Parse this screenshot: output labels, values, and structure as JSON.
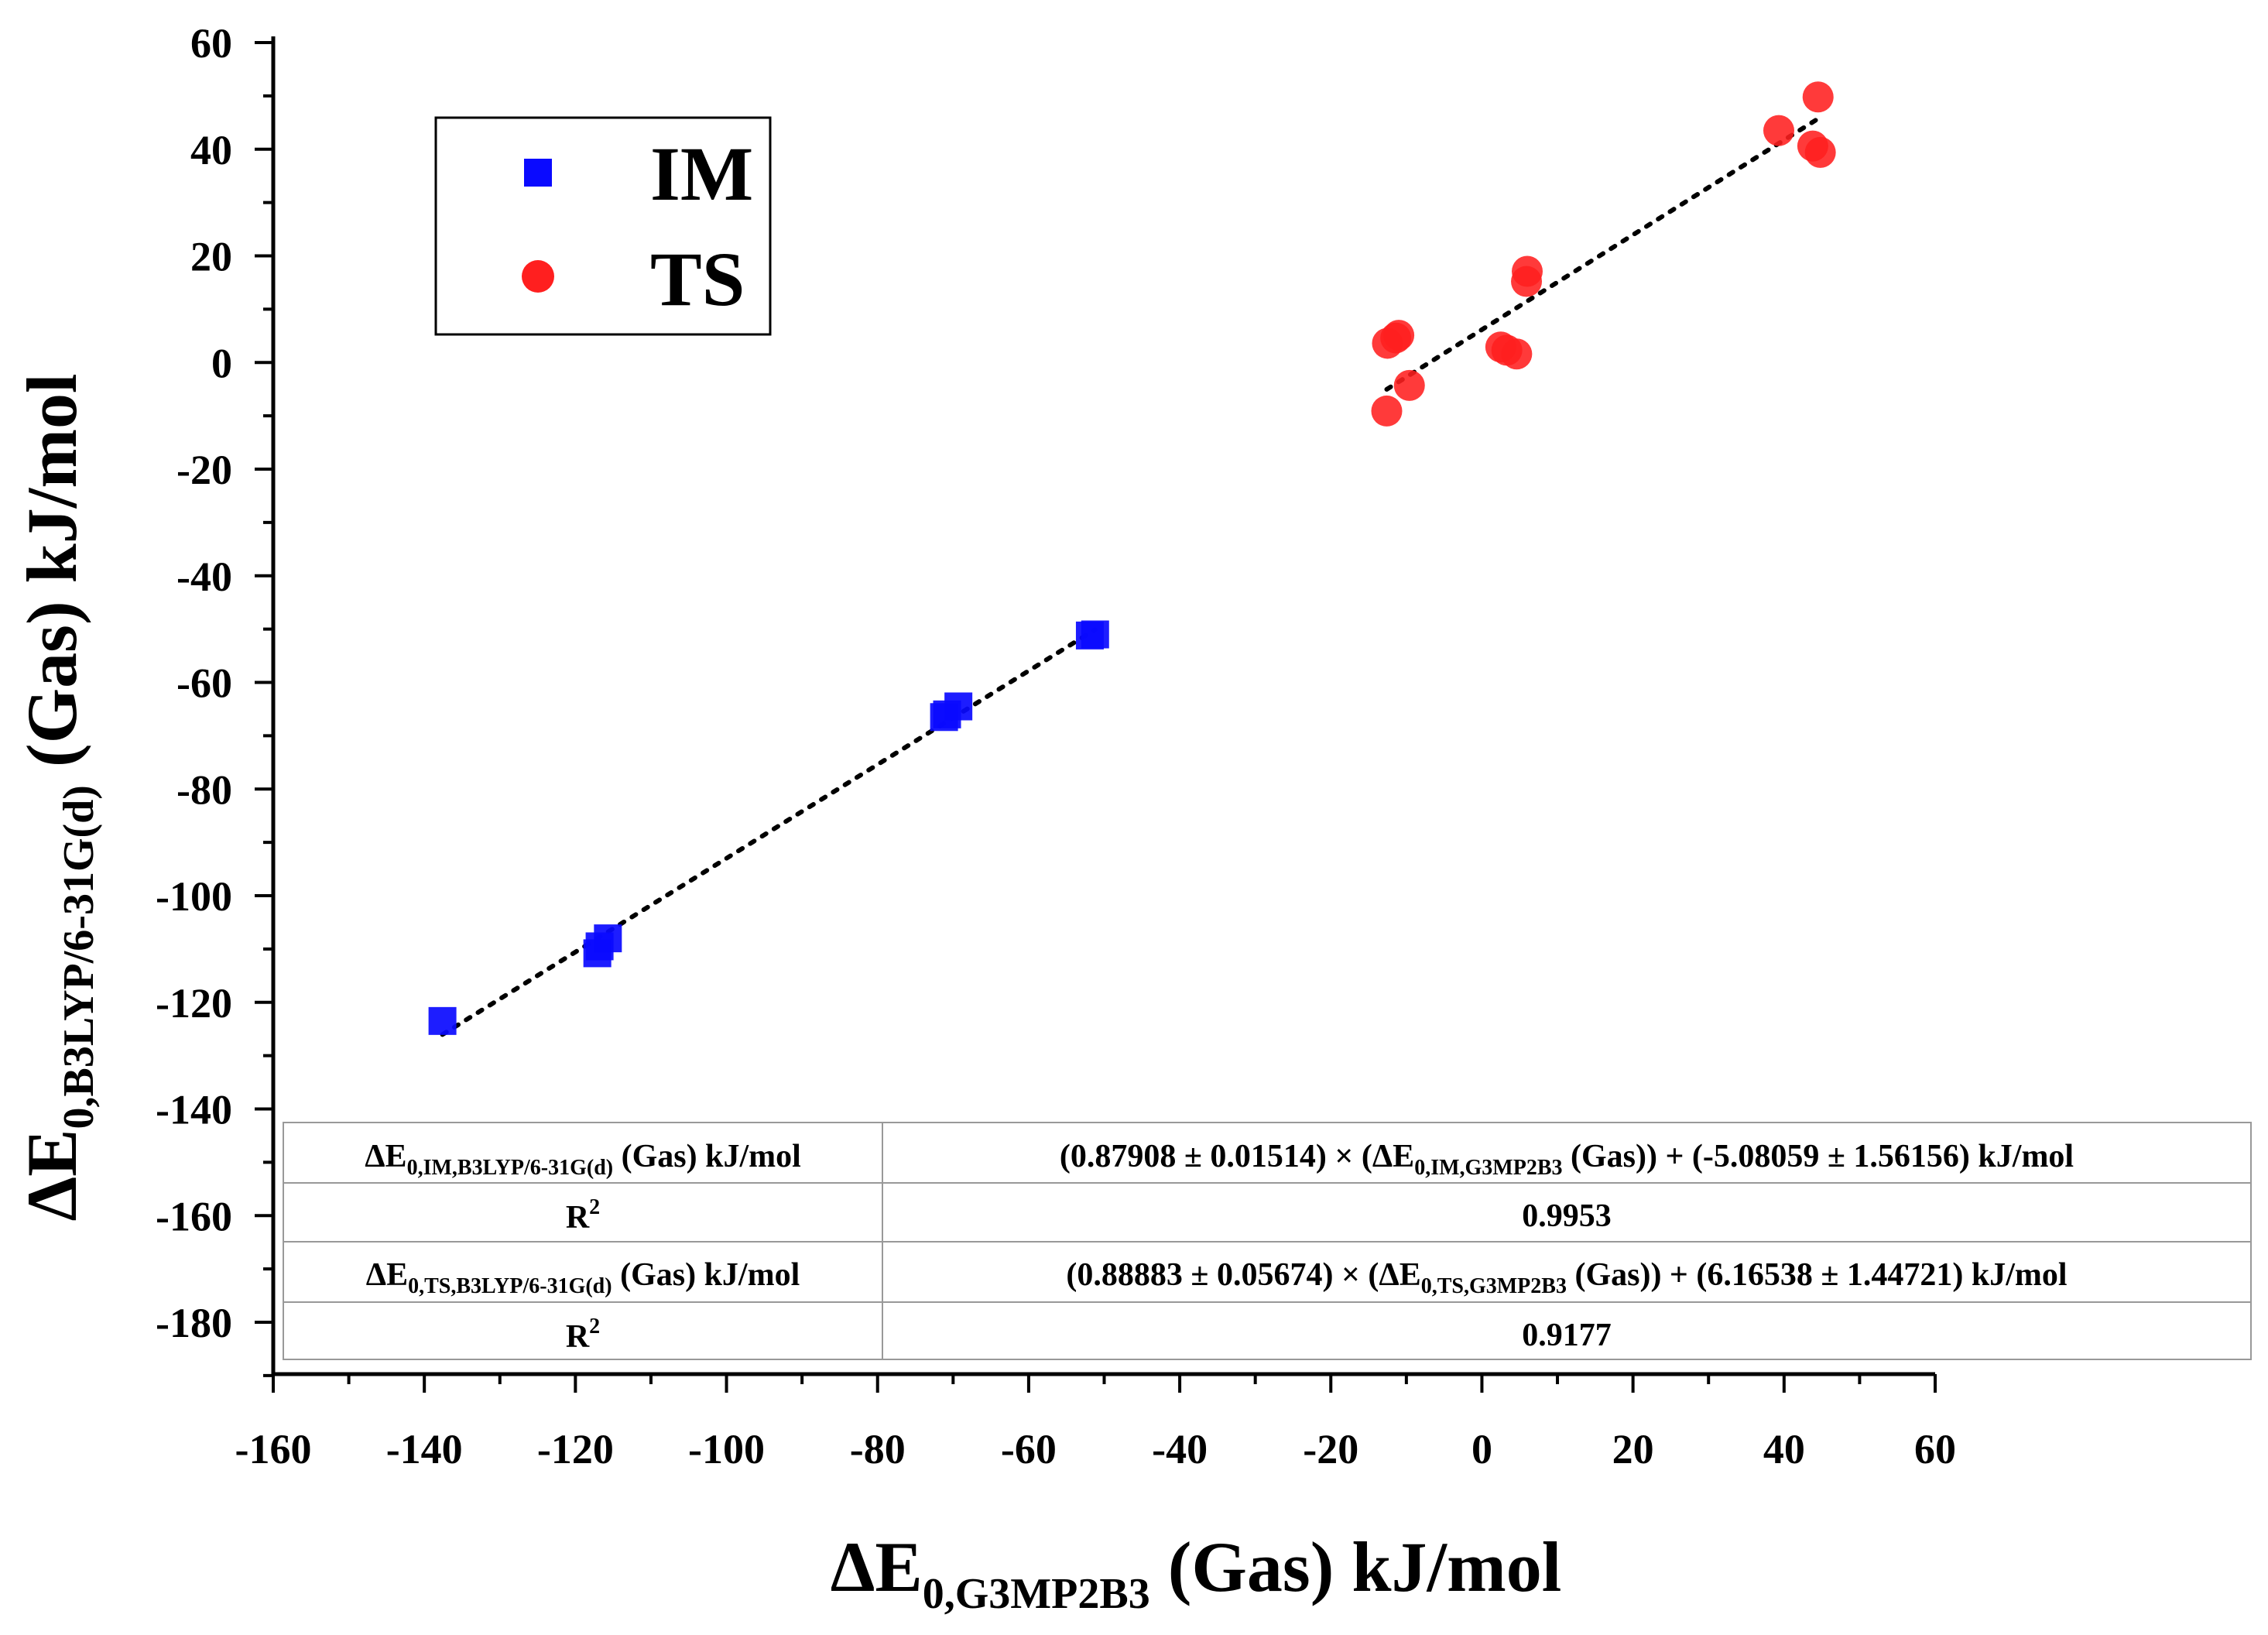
{
  "chart_data": {
    "type": "scatter",
    "x_axis": {
      "label_main": "ΔE",
      "label_sub": "0,G3MP2B3",
      "label_rest": " (Gas) kJ/mol",
      "range": [
        -160,
        60
      ],
      "ticks": [
        -160,
        -140,
        -120,
        -100,
        -80,
        -60,
        -40,
        -20,
        0,
        20,
        40,
        60
      ],
      "tick_labels": [
        "-160",
        "-140",
        "-120",
        "-100",
        "-80",
        "-60",
        "-40",
        "-20",
        "0",
        "20",
        "40",
        "60"
      ]
    },
    "y_axis": {
      "label_main": "ΔE",
      "label_sub": "0,B3LYP/6-31G(d)",
      "label_rest": " (Gas) kJ/mol",
      "range": [
        -190,
        60
      ],
      "ticks": [
        60,
        40,
        20,
        0,
        -20,
        -40,
        -60,
        -80,
        -100,
        -120,
        -140,
        -160,
        -180
      ],
      "tick_labels": [
        "60",
        "40",
        "20",
        "0",
        "-20",
        "-40",
        "-60",
        "-80",
        "-100",
        "-120",
        "-140",
        "-160",
        "-180"
      ]
    },
    "legend": {
      "position": "top-left",
      "entries": [
        {
          "name": "IM",
          "marker": "square",
          "color": "#0a0aff"
        },
        {
          "name": "TS",
          "marker": "circle",
          "color": "#ff1f1f"
        }
      ]
    },
    "series": [
      {
        "name": "IM",
        "color": "#0a0aff",
        "points": [
          [
            -137.6,
            -123.5
          ],
          [
            -117.1,
            -110.8
          ],
          [
            -116.8,
            -109.5
          ],
          [
            -115.7,
            -108.0
          ],
          [
            -71.2,
            -66.5
          ],
          [
            -70.8,
            -66.0
          ],
          [
            -69.3,
            -64.5
          ],
          [
            -51.9,
            -51.2
          ],
          [
            -51.2,
            -51.0
          ]
        ],
        "fit": {
          "slope": 0.87908,
          "intercept": -5.08059,
          "x_range": [
            -137.6,
            -51.2
          ]
        }
      },
      {
        "name": "TS",
        "color": "#ff1f1f",
        "points": [
          [
            -12.6,
            -9.1
          ],
          [
            -9.6,
            -4.3
          ],
          [
            -12.5,
            3.6
          ],
          [
            -11.4,
            4.6
          ],
          [
            -11.0,
            5.1
          ],
          [
            2.5,
            2.9
          ],
          [
            3.3,
            2.3
          ],
          [
            4.6,
            1.6
          ],
          [
            5.9,
            15.2
          ],
          [
            6.0,
            17.1
          ],
          [
            39.3,
            43.5
          ],
          [
            43.8,
            40.6
          ],
          [
            44.5,
            49.8
          ],
          [
            44.8,
            39.4
          ]
        ],
        "fit": {
          "slope": 0.88883,
          "intercept": 6.16538,
          "x_range": [
            -12.6,
            44.8
          ]
        }
      }
    ],
    "table": {
      "rows": [
        {
          "lhs_main": "ΔE",
          "lhs_sub": "0,IM,B3LYP/6-31G(d)",
          "lhs_rest": " (Gas) kJ/mol",
          "rhs_pre": "(0.87908 ± 0.01514) × (ΔE",
          "rhs_sub": "0,IM,G3MP2B3",
          "rhs_post": " (Gas)) + (-5.08059 ± 1.56156) kJ/mol"
        },
        {
          "label_main": "R",
          "label_sup": "2",
          "value": "0.9953"
        },
        {
          "lhs_main": "ΔE",
          "lhs_sub": "0,TS,B3LYP/6-31G(d)",
          "lhs_rest": " (Gas) kJ/mol",
          "rhs_pre": "(0.88883 ± 0.05674) × (ΔE",
          "rhs_sub": "0,TS,G3MP2B3",
          "rhs_post": " (Gas)) + (6.16538 ± 1.44721) kJ/mol"
        },
        {
          "label_main": "R",
          "label_sup": "2",
          "value": "0.9177"
        }
      ]
    }
  }
}
